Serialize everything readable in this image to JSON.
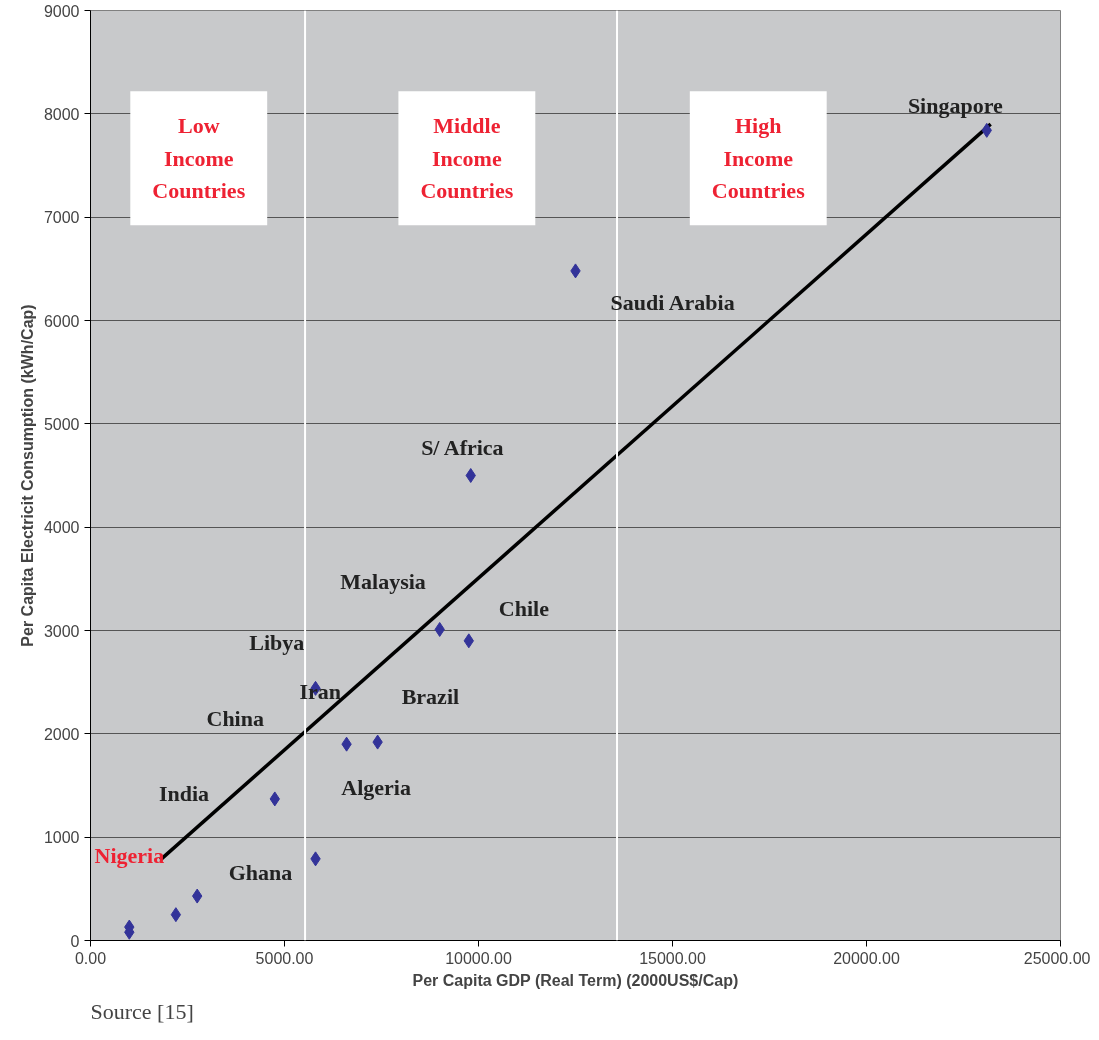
{
  "chart_data": {
    "type": "scatter",
    "xlabel": "Per Capita GDP (Real Term) (2000US$/Cap)",
    "ylabel": "Per Capita Electricit Consumption (kWh/Cap)",
    "xlim": [
      0,
      25000
    ],
    "ylim": [
      0,
      9000
    ],
    "xticks": [
      {
        "value": 0,
        "label": "0.00"
      },
      {
        "value": 5000,
        "label": "5000.00"
      },
      {
        "value": 10000,
        "label": "10000.00"
      },
      {
        "value": 15000,
        "label": "15000.00"
      },
      {
        "value": 20000,
        "label": "20000.00"
      },
      {
        "value": 25000,
        "label": "25000.00"
      }
    ],
    "yticks": [
      0,
      1000,
      2000,
      3000,
      4000,
      5000,
      6000,
      7000,
      8000,
      9000
    ],
    "grid": "y",
    "marker": "diamond",
    "series": [
      {
        "color": "#333399",
        "x": [
          1000,
          1000,
          2200,
          2750,
          4750,
          5800,
          5800,
          6600,
          7400,
          9000,
          9750,
          9800,
          12500,
          23100
        ],
        "values": [
          130,
          80,
          250,
          430,
          1370,
          2440,
          790,
          1900,
          1920,
          3010,
          2900,
          4500,
          6480,
          7840
        ]
      },
      {
        "type": "line",
        "marker": "none",
        "color": "#000000",
        "x": [
          1800,
          23200
        ],
        "values": [
          780,
          7900
        ]
      }
    ],
    "ref_lines": [
      {
        "axis": "x",
        "value": 5530,
        "color": "#ffffff"
      },
      {
        "axis": "x",
        "value": 13570,
        "color": "#ffffff"
      }
    ],
    "annotations": [
      "Low\nIncome\nCountries",
      "Middle\nIncome\nCountries",
      "High\nIncome\nCountries",
      "Singapore",
      "Saudi Arabia",
      "S/ Africa",
      "Malaysia",
      "Chile",
      "Libya",
      "Iran",
      "Brazil",
      "China",
      "India",
      "Algeria",
      "Nigeria",
      "Ghana",
      "Source [15]"
    ]
  }
}
